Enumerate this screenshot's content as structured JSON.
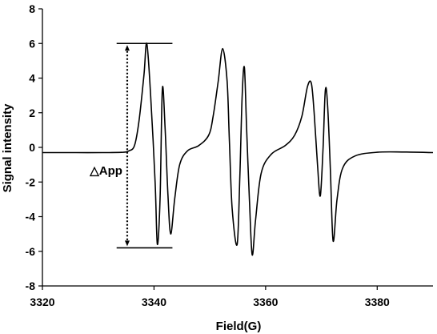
{
  "chart_data": {
    "type": "line",
    "title": "",
    "xlabel": "Field(G)",
    "ylabel": "Signal intensity",
    "xlim": [
      3320,
      3390
    ],
    "ylim": [
      -8,
      8
    ],
    "x_ticks": [
      3320,
      3340,
      3360,
      3380
    ],
    "y_ticks": [
      -8,
      -6,
      -4,
      -2,
      0,
      2,
      4,
      6,
      8
    ],
    "grid": false,
    "legend": "none",
    "line_color": "#000000",
    "series": [
      {
        "x": [
          3320,
          3326,
          3332,
          3334.5,
          3335.5,
          3336.5,
          3337.3,
          3338.2,
          3338.7,
          3339.4,
          3340.2,
          3340.6,
          3341.1,
          3341.5,
          3342.0,
          3342.5,
          3343.0,
          3343.7,
          3344.6,
          3346,
          3348,
          3349.8,
          3350.6,
          3351.5,
          3352.3,
          3353.1,
          3353.5,
          3354.0,
          3354.9,
          3355.4,
          3355.8,
          3356.2,
          3356.6,
          3357.1,
          3357.6,
          3358.2,
          3359.2,
          3361,
          3363.5,
          3365.2,
          3366.5,
          3367.5,
          3368.2,
          3368.7,
          3369.3,
          3369.8,
          3370.3,
          3370.7,
          3371.1,
          3371.6,
          3372.1,
          3372.8,
          3373.8,
          3376,
          3380,
          3385,
          3390
        ],
        "y": [
          -0.3,
          -0.3,
          -0.3,
          -0.28,
          -0.2,
          0.1,
          1.5,
          4.2,
          6.0,
          3.0,
          -2.0,
          -5.6,
          -2.8,
          3.4,
          1.0,
          -2.8,
          -5.0,
          -3.0,
          -1.0,
          -0.2,
          0.1,
          0.7,
          1.8,
          3.8,
          5.7,
          3.8,
          0.5,
          -3.5,
          -5.6,
          -1.5,
          3.0,
          4.6,
          1.0,
          -3.0,
          -6.2,
          -4.2,
          -1.5,
          -0.4,
          0.1,
          0.7,
          1.8,
          3.5,
          3.7,
          2.0,
          -1.0,
          -2.8,
          0.0,
          3.3,
          2.5,
          -1.2,
          -5.4,
          -3.0,
          -1.2,
          -0.5,
          -0.28,
          -0.27,
          -0.3
        ]
      }
    ],
    "annotation": {
      "label": "△App",
      "y_top": 6.0,
      "y_bottom": -5.8,
      "x_marker": 3335.2,
      "hline_x": [
        3333.3,
        3343.3
      ]
    }
  }
}
